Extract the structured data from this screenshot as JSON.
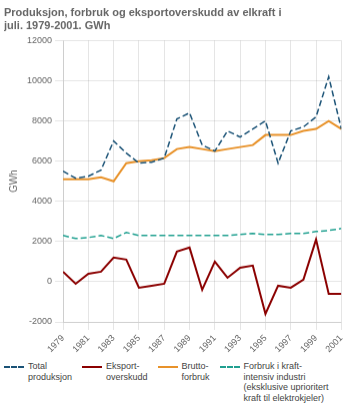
{
  "chart_data": {
    "type": "line",
    "title": "Produksjon, forbruk og eksportoverskudd av elkraft i\njuli. 1979-2001. GWh",
    "ylabel": "GWh",
    "x": [
      1979,
      1980,
      1981,
      1982,
      1983,
      1984,
      1985,
      1986,
      1987,
      1988,
      1989,
      1990,
      1991,
      1992,
      1993,
      1994,
      1995,
      1996,
      1997,
      1998,
      1999,
      2000,
      2001
    ],
    "series": [
      {
        "name": "Total\nproduksjon",
        "color": "#1a5276",
        "line_style": "dashed",
        "values": [
          5500,
          5150,
          5250,
          5550,
          7000,
          6400,
          5900,
          5950,
          6150,
          8100,
          8400,
          6800,
          6500,
          7500,
          7200,
          7600,
          8000,
          5900,
          7500,
          7700,
          8200,
          10200,
          7600
        ]
      },
      {
        "name": "Eksport-\noverskudd",
        "color": "#8b0000",
        "line_style": "solid",
        "values": [
          500,
          -100,
          400,
          500,
          1200,
          1100,
          -300,
          -200,
          -100,
          1500,
          1700,
          -400,
          1000,
          200,
          700,
          800,
          -1600,
          -200,
          -300,
          100,
          2100,
          -600,
          -600
        ]
      },
      {
        "name": "Brutto-\nforbruk",
        "color": "#e8922a",
        "line_style": "solid",
        "values": [
          5100,
          5100,
          5100,
          5200,
          5000,
          5900,
          6000,
          6050,
          6150,
          6600,
          6700,
          6600,
          6500,
          6600,
          6700,
          6800,
          7300,
          7300,
          7300,
          7500,
          7600,
          8000,
          7600
        ]
      },
      {
        "name": "Forbruk i kraft-\nintensiv industri\n(eksklusive uprioritert\nkraft til elektrokjeler)",
        "color": "#20a090",
        "line_style": "dashed",
        "values": [
          2300,
          2150,
          2200,
          2300,
          2150,
          2450,
          2300,
          2300,
          2300,
          2300,
          2300,
          2300,
          2300,
          2300,
          2350,
          2400,
          2350,
          2350,
          2400,
          2400,
          2500,
          2550,
          2650
        ]
      }
    ],
    "xlim": [
      1979,
      2001
    ],
    "xticks": [
      1979,
      1981,
      1983,
      1985,
      1987,
      1989,
      1991,
      1993,
      1995,
      1997,
      1999,
      2001
    ],
    "ylim": [
      -2000,
      12000
    ],
    "yticks": [
      -2000,
      0,
      2000,
      4000,
      6000,
      8000,
      10000,
      12000
    ],
    "grid": true,
    "legend": "bottom"
  }
}
